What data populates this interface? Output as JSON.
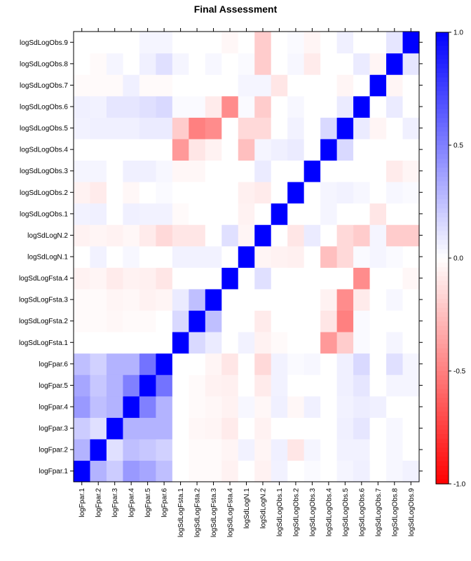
{
  "chart_data": {
    "type": "heatmap",
    "title": "Final Assessment",
    "categories": [
      "logFpar.1",
      "logFpar.2",
      "logFpar.3",
      "logFpar.4",
      "logFpar.5",
      "logFpar.6",
      "logSdLogFsta.1",
      "logSdLogFsta.2",
      "logSdLogFsta.3",
      "logSdLogFsta.4",
      "logSdLogN.1",
      "logSdLogN.2",
      "logSdLogObs.1",
      "logSdLogObs.2",
      "logSdLogObs.3",
      "logSdLogObs.4",
      "logSdLogObs.5",
      "logSdLogObs.6",
      "logSdLogObs.7",
      "logSdLogObs.8",
      "logSdLogObs.9"
    ],
    "values": [
      [
        1.0,
        0.3,
        0.2,
        0.4,
        0.35,
        0.25,
        0.0,
        -0.02,
        -0.02,
        -0.05,
        0.0,
        -0.05,
        0.05,
        0.0,
        0.02,
        0.0,
        0.04,
        0.06,
        0.0,
        0.03,
        0.05
      ],
      [
        0.3,
        1.0,
        0.12,
        0.25,
        0.22,
        0.18,
        0.0,
        -0.02,
        -0.02,
        -0.04,
        0.05,
        -0.04,
        0.06,
        -0.1,
        0.04,
        0.0,
        0.05,
        0.05,
        0.0,
        0.03,
        0.0
      ],
      [
        0.2,
        0.12,
        1.0,
        0.3,
        0.3,
        0.3,
        0.0,
        -0.03,
        -0.04,
        -0.08,
        0.0,
        -0.05,
        0.0,
        0.0,
        0.0,
        0.0,
        0.06,
        0.1,
        0.0,
        0.03,
        0.0
      ],
      [
        0.4,
        0.25,
        0.3,
        1.0,
        0.5,
        0.3,
        0.0,
        -0.02,
        -0.03,
        -0.05,
        0.03,
        -0.03,
        0.06,
        -0.03,
        0.06,
        0.0,
        0.05,
        0.07,
        0.06,
        0.0,
        0.0
      ],
      [
        0.35,
        0.22,
        0.3,
        0.5,
        1.0,
        0.55,
        0.0,
        -0.02,
        -0.05,
        -0.06,
        0.0,
        -0.08,
        0.05,
        0.0,
        0.0,
        0.0,
        0.06,
        0.1,
        0.0,
        0.04,
        0.04
      ],
      [
        0.25,
        0.18,
        0.3,
        0.3,
        0.55,
        1.0,
        0.0,
        0.0,
        -0.04,
        -0.1,
        0.0,
        -0.15,
        0.05,
        0.02,
        0.03,
        0.0,
        0.06,
        0.15,
        0.0,
        0.12,
        0.04
      ],
      [
        0.0,
        0.0,
        0.0,
        0.0,
        0.0,
        0.0,
        1.0,
        0.15,
        0.08,
        0.0,
        0.05,
        -0.05,
        -0.02,
        0.0,
        0.0,
        -0.4,
        -0.2,
        0.02,
        0.0,
        0.04,
        0.0
      ],
      [
        -0.02,
        -0.02,
        -0.03,
        -0.02,
        -0.02,
        0.0,
        0.15,
        1.0,
        0.25,
        0.0,
        0.0,
        -0.08,
        0.0,
        0.0,
        0.0,
        -0.1,
        -0.5,
        0.02,
        0.0,
        0.0,
        0.0
      ],
      [
        -0.02,
        -0.02,
        -0.04,
        -0.03,
        -0.05,
        -0.04,
        0.08,
        0.25,
        1.0,
        0.0,
        0.0,
        0.0,
        0.0,
        0.0,
        0.0,
        -0.05,
        -0.45,
        -0.08,
        0.0,
        0.03,
        0.0
      ],
      [
        -0.05,
        -0.04,
        -0.08,
        -0.05,
        -0.06,
        -0.1,
        0.0,
        0.0,
        0.0,
        1.0,
        0.0,
        0.12,
        0.0,
        0.0,
        0.0,
        0.0,
        0.0,
        -0.45,
        0.0,
        0.0,
        -0.03
      ],
      [
        0.0,
        0.05,
        0.0,
        0.03,
        0.0,
        0.0,
        0.05,
        0.05,
        0.05,
        0.0,
        1.0,
        -0.04,
        -0.05,
        -0.06,
        0.0,
        -0.25,
        -0.15,
        0.02,
        0.04,
        0.02,
        0.0
      ],
      [
        -0.05,
        -0.04,
        -0.05,
        -0.03,
        -0.08,
        -0.15,
        -0.1,
        -0.1,
        0.0,
        0.12,
        -0.04,
        1.0,
        0.0,
        -0.1,
        0.08,
        0.0,
        -0.15,
        -0.2,
        0.04,
        -0.2,
        -0.2
      ],
      [
        0.05,
        0.06,
        0.0,
        0.06,
        0.05,
        0.05,
        -0.02,
        0.0,
        0.0,
        0.0,
        -0.05,
        0.0,
        1.0,
        0.0,
        0.0,
        0.04,
        0.0,
        0.0,
        -0.1,
        0.0,
        0.0
      ],
      [
        -0.05,
        -0.08,
        0.0,
        -0.03,
        0.0,
        0.02,
        0.0,
        0.0,
        0.0,
        0.0,
        -0.06,
        -0.08,
        0.0,
        1.0,
        0.0,
        0.04,
        0.05,
        0.03,
        0.0,
        0.03,
        0.02
      ],
      [
        0.04,
        0.04,
        0.0,
        0.06,
        0.06,
        0.03,
        -0.03,
        -0.03,
        0.0,
        0.0,
        0.0,
        0.08,
        0.0,
        0.0,
        1.0,
        0.0,
        0.0,
        0.0,
        0.0,
        -0.08,
        -0.04
      ],
      [
        0.0,
        0.0,
        0.0,
        0.0,
        0.0,
        0.0,
        -0.4,
        -0.1,
        -0.05,
        0.0,
        -0.25,
        0.04,
        0.06,
        0.08,
        0.0,
        1.0,
        0.15,
        0.0,
        0.0,
        0.0,
        0.0
      ],
      [
        0.05,
        0.06,
        0.06,
        0.06,
        0.08,
        0.08,
        -0.2,
        -0.5,
        -0.45,
        0.0,
        -0.15,
        -0.15,
        0.0,
        0.05,
        0.0,
        0.15,
        1.0,
        0.08,
        -0.04,
        0.0,
        0.06
      ],
      [
        0.06,
        0.05,
        0.1,
        0.1,
        0.12,
        0.15,
        0.02,
        0.02,
        -0.08,
        -0.45,
        0.02,
        -0.2,
        0.0,
        0.03,
        0.0,
        0.0,
        0.08,
        1.0,
        0.0,
        0.08,
        0.0
      ],
      [
        -0.02,
        -0.02,
        -0.02,
        0.06,
        -0.02,
        -0.02,
        0.0,
        0.0,
        0.0,
        0.0,
        0.04,
        0.04,
        -0.1,
        0.0,
        0.0,
        0.0,
        -0.04,
        0.0,
        1.0,
        -0.04,
        0.0
      ],
      [
        0.0,
        -0.02,
        0.04,
        0.0,
        0.06,
        0.12,
        0.04,
        0.0,
        0.03,
        0.0,
        0.02,
        -0.2,
        0.0,
        0.03,
        -0.08,
        0.0,
        0.0,
        0.08,
        -0.04,
        1.0,
        0.1
      ],
      [
        0.0,
        0.0,
        0.0,
        0.0,
        0.04,
        0.04,
        0.0,
        0.0,
        0.0,
        -0.03,
        0.0,
        -0.2,
        0.0,
        0.02,
        -0.04,
        0.0,
        0.06,
        0.0,
        0.0,
        0.1,
        1.0
      ]
    ],
    "colorbar": {
      "range": [
        -1.0,
        1.0
      ],
      "ticks": [
        "-1.0",
        "-0.5",
        "0.0",
        "0.5",
        "1.0"
      ],
      "low_color": "#ff0000",
      "mid_color": "#ffffff",
      "high_color": "#0000ff"
    },
    "grid": false
  }
}
